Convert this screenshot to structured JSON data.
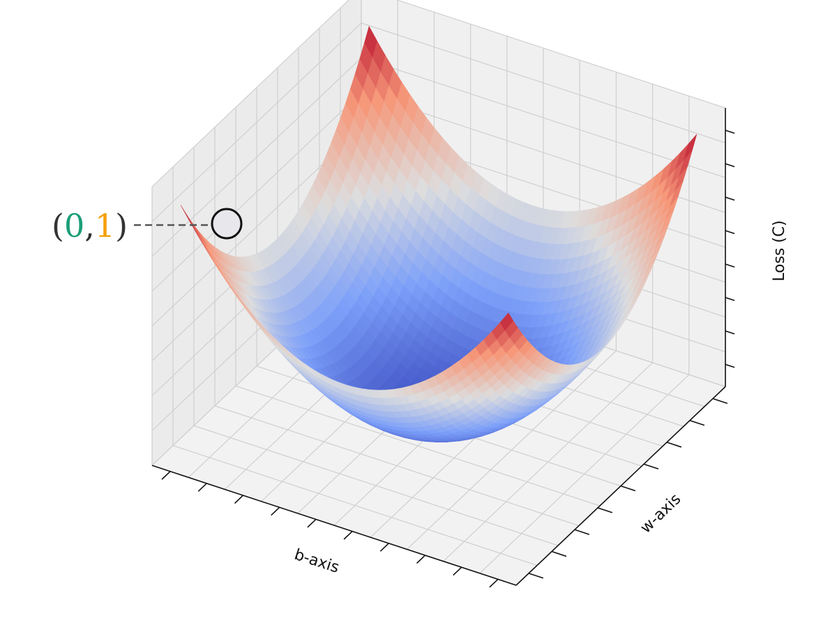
{
  "chart_data": {
    "type": "surface",
    "xlabel": "b-axis",
    "ylabel": "w-axis",
    "zlabel": "Loss (C)",
    "colormap": "coolwarm",
    "annotation": {
      "parts": [
        "(",
        "0",
        ",",
        "1",
        ")"
      ],
      "colors": [
        "#333333",
        "#1a9e77",
        "#333333",
        "#f5a00b",
        "#333333"
      ]
    }
  }
}
